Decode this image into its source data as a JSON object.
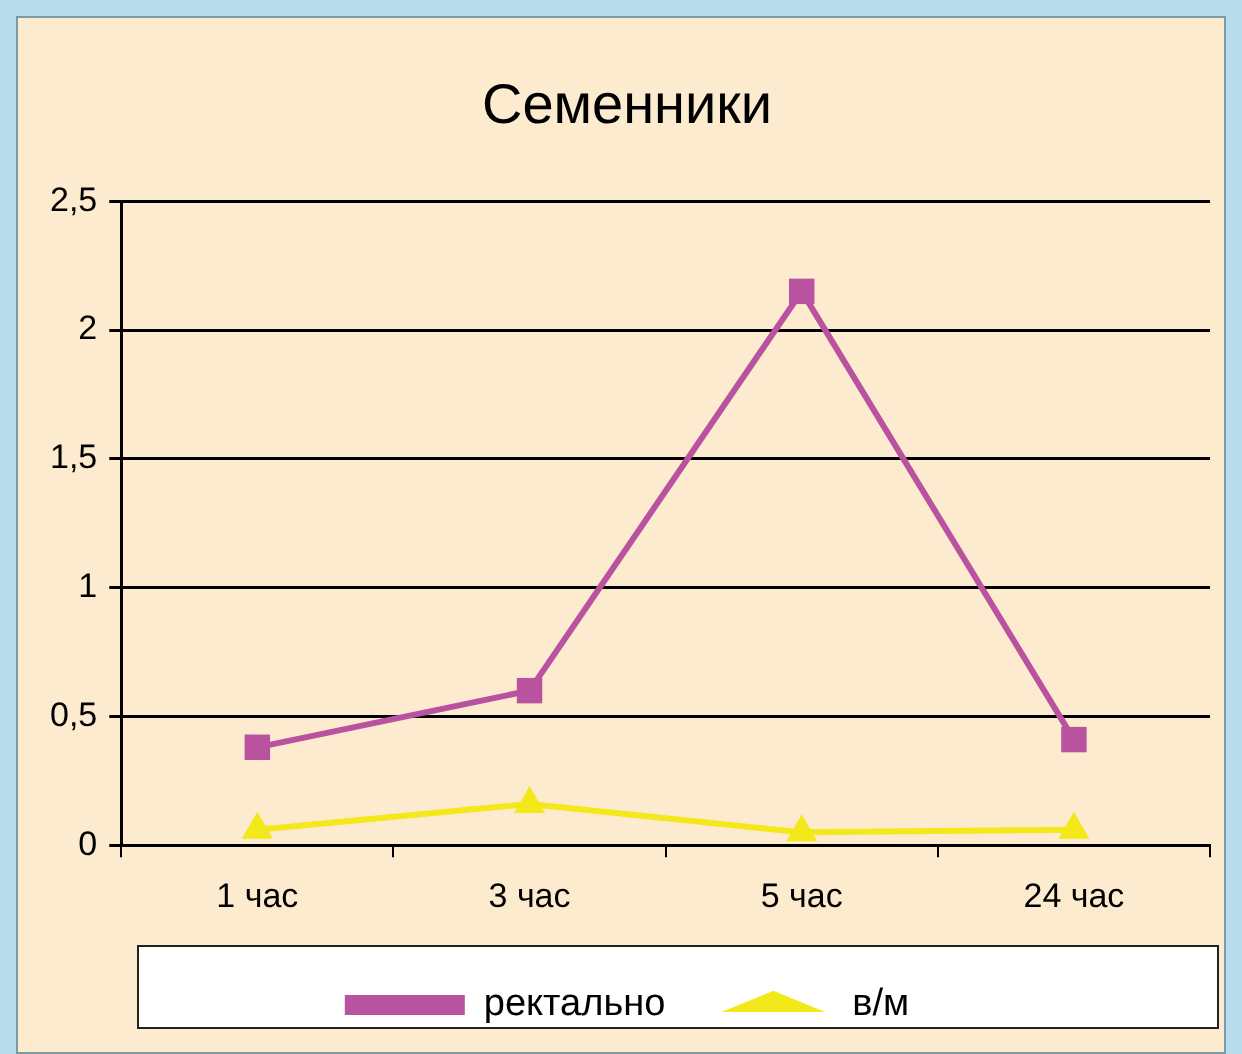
{
  "chart_data": {
    "type": "line",
    "title": "Семенники",
    "categories": [
      "1 час",
      "3 час",
      "5 час",
      "24 час"
    ],
    "series": [
      {
        "name": "ректально",
        "color": "#b9529f",
        "values": [
          0.38,
          0.6,
          2.15,
          0.41
        ],
        "marker": "square"
      },
      {
        "name": "в/м",
        "color": "#f2e81a",
        "values": [
          0.06,
          0.16,
          0.05,
          0.06
        ],
        "marker": "triangle"
      }
    ],
    "ylim": [
      0,
      2.5
    ],
    "yticks": [
      {
        "value": 0,
        "label": "0"
      },
      {
        "value": 0.5,
        "label": "0,5"
      },
      {
        "value": 1,
        "label": "1"
      },
      {
        "value": 1.5,
        "label": "1,5"
      },
      {
        "value": 2,
        "label": "2"
      },
      {
        "value": 2.5,
        "label": "2,5"
      }
    ],
    "grid": "y",
    "legend": "bottom",
    "line_style": "solid"
  }
}
